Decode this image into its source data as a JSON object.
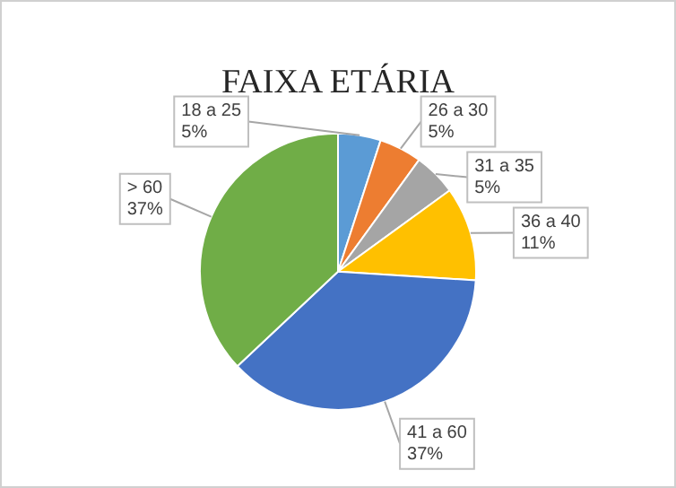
{
  "chart_data": {
    "type": "pie",
    "title": "FAIXA ETÁRIA",
    "categories": [
      "18 a 25",
      "26 a 30",
      "31 a 35",
      "36 a 40",
      "41 a 60",
      "> 60"
    ],
    "values": [
      5,
      5,
      5,
      11,
      37,
      37
    ],
    "value_labels": [
      "5%",
      "5%",
      "5%",
      "11%",
      "37%",
      "37%"
    ],
    "colors": [
      "#5b9bd5",
      "#ed7d31",
      "#a5a5a5",
      "#ffc000",
      "#4472c4",
      "#70ad47"
    ]
  }
}
